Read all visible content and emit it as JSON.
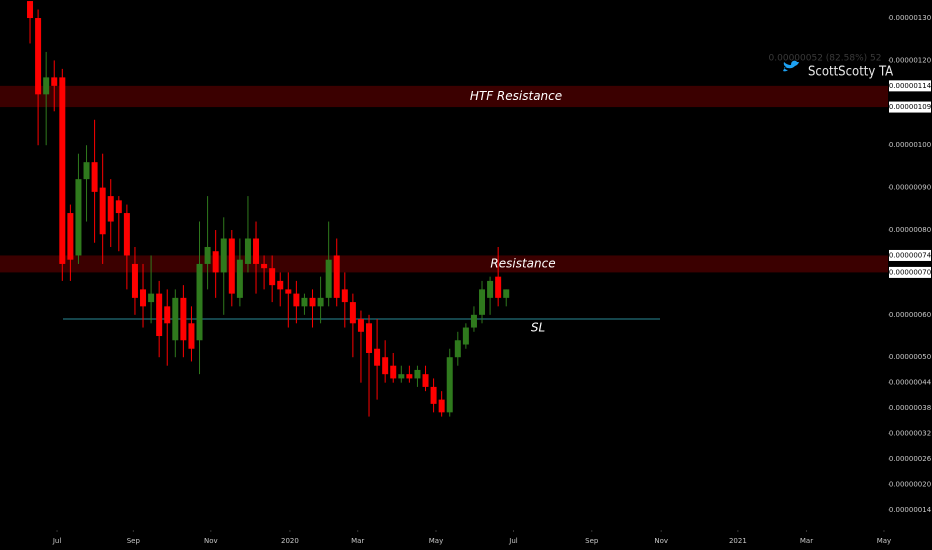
{
  "chart_data": {
    "type": "candlestick",
    "change_text": "0.00000052 (82.58%) 52",
    "watermark": "ScottScotty TA",
    "up_color": "#2f7a1d",
    "down_color": "#ff0000",
    "candles": {
      "open": [
        1.34e-06,
        1.3e-06,
        1.12e-06,
        1.16e-06,
        1.16e-06,
        8.4e-07,
        7.4e-07,
        9.2e-07,
        9.6e-07,
        9e-07,
        8.8e-07,
        8.7e-07,
        8.4e-07,
        7.2e-07,
        6.6e-07,
        6.3e-07,
        6.5e-07,
        6.2e-07,
        5.4e-07,
        6.4e-07,
        5.8e-07,
        5.4e-07,
        7.2e-07,
        7.5e-07,
        7e-07,
        7.8e-07,
        6.4e-07,
        7.2e-07,
        7.8e-07,
        7.2e-07,
        7.1e-07,
        6.8e-07,
        6.6e-07,
        6.5e-07,
        6.2e-07,
        6.4e-07,
        6.2e-07,
        6.4e-07,
        7.4e-07,
        6.6e-07,
        6.3e-07,
        5.9e-07,
        5.8e-07,
        5.2e-07,
        5e-07,
        4.8e-07,
        4.5e-07,
        4.6e-07,
        4.5e-07,
        4.6e-07,
        4.3e-07,
        4e-07,
        3.7e-07,
        5e-07,
        5.3e-07,
        5.7e-07,
        6e-07,
        6.4e-07,
        6.9e-07,
        6.4e-07
      ],
      "high": [
        1.34e-06,
        1.32e-06,
        1.22e-06,
        1.2e-06,
        1.18e-06,
        8.6e-07,
        9.8e-07,
        1e-06,
        1.06e-06,
        9.8e-07,
        9.2e-07,
        8.8e-07,
        8.6e-07,
        7.6e-07,
        7.2e-07,
        7.4e-07,
        6.8e-07,
        6.6e-07,
        6.6e-07,
        6.7e-07,
        6.2e-07,
        8.2e-07,
        8.8e-07,
        8e-07,
        8.3e-07,
        8e-07,
        7.8e-07,
        8.8e-07,
        8.2e-07,
        7.4e-07,
        7.4e-07,
        7e-07,
        7e-07,
        6.8e-07,
        6.5e-07,
        6.6e-07,
        6.9e-07,
        8.2e-07,
        7.8e-07,
        7e-07,
        6.5e-07,
        6.1e-07,
        6e-07,
        5.9e-07,
        5.4e-07,
        5.1e-07,
        4.8e-07,
        4.8e-07,
        4.8e-07,
        4.8e-07,
        4.5e-07,
        4.2e-07,
        5.2e-07,
        5.6e-07,
        5.8e-07,
        6.2e-07,
        6.8e-07,
        6.9e-07,
        7.6e-07,
        6.6e-07
      ],
      "low": [
        1.24e-06,
        1e-06,
        1e-06,
        1.08e-06,
        6.8e-07,
        6.8e-07,
        7.2e-07,
        8.2e-07,
        7.7e-07,
        7.2e-07,
        7.6e-07,
        7.5e-07,
        6.6e-07,
        6e-07,
        5.7e-07,
        5.8e-07,
        5e-07,
        4.8e-07,
        5e-07,
        5e-07,
        4.9e-07,
        4.6e-07,
        6.6e-07,
        6.4e-07,
        6e-07,
        6.2e-07,
        6.2e-07,
        7e-07,
        6.5e-07,
        6.6e-07,
        6.3e-07,
        6.2e-07,
        5.7e-07,
        5.8e-07,
        6e-07,
        5.7e-07,
        5.8e-07,
        6.2e-07,
        6.2e-07,
        5.7e-07,
        5e-07,
        4.4e-07,
        3.6e-07,
        4e-07,
        4.4e-07,
        4.4e-07,
        4.4e-07,
        4.4e-07,
        4.3e-07,
        4.2e-07,
        3.7e-07,
        3.6e-07,
        3.6e-07,
        4.8e-07,
        5.2e-07,
        5.6e-07,
        5.8e-07,
        6e-07,
        6.2e-07,
        6.2e-07
      ],
      "close": [
        1.3e-06,
        1.12e-06,
        1.16e-06,
        1.14e-06,
        7.2e-07,
        7.3e-07,
        9.2e-07,
        9.6e-07,
        8.9e-07,
        7.9e-07,
        8.2e-07,
        8.4e-07,
        7.4e-07,
        6.4e-07,
        6.2e-07,
        6.5e-07,
        5.5e-07,
        5.8e-07,
        6.4e-07,
        5.4e-07,
        5.2e-07,
        7.2e-07,
        7.6e-07,
        7e-07,
        7.8e-07,
        6.5e-07,
        7.3e-07,
        7.8e-07,
        7.2e-07,
        7.1e-07,
        6.7e-07,
        6.6e-07,
        6.5e-07,
        6.2e-07,
        6.4e-07,
        6.2e-07,
        6.4e-07,
        7.3e-07,
        6.4e-07,
        6.3e-07,
        5.8e-07,
        5.6e-07,
        5.1e-07,
        4.8e-07,
        4.6e-07,
        4.5e-07,
        4.6e-07,
        4.5e-07,
        4.7e-07,
        4.3e-07,
        3.9e-07,
        3.7e-07,
        5e-07,
        5.4e-07,
        5.7e-07,
        6e-07,
        6.6e-07,
        6.8e-07,
        6.4e-07,
        6.6e-07
      ]
    },
    "xlim": [
      -3.72,
      106.3
    ],
    "xticks": [
      {
        "value": 3.35,
        "label": "Jul"
      },
      {
        "value": 12.8,
        "label": "Sep"
      },
      {
        "value": 22.4,
        "label": "Nov"
      },
      {
        "value": 32.2,
        "label": "2020"
      },
      {
        "value": 40.6,
        "label": "Mar"
      },
      {
        "value": 50.3,
        "label": "May"
      },
      {
        "value": 59.9,
        "label": "Jul"
      },
      {
        "value": 69.6,
        "label": "Sep"
      },
      {
        "value": 78.2,
        "label": "Nov"
      },
      {
        "value": 87.7,
        "label": "2021"
      },
      {
        "value": 96.2,
        "label": "Mar"
      },
      {
        "value": 105.8,
        "label": "May"
      }
    ],
    "ylim": [
      9.25e-08,
      1.3425e-06
    ],
    "yticks": [
      {
        "value": 1.3e-06,
        "label": "0.00000130"
      },
      {
        "value": 1.2e-06,
        "label": "0.00000120"
      },
      {
        "value": 1e-06,
        "label": "0.00000100"
      },
      {
        "value": 9e-07,
        "label": "0.00000090"
      },
      {
        "value": 8e-07,
        "label": "0.00000080"
      },
      {
        "value": 6e-07,
        "label": "0.00000060"
      },
      {
        "value": 5e-07,
        "label": "0.00000050"
      },
      {
        "value": 4.4e-07,
        "label": "0.00000044"
      },
      {
        "value": 3.8e-07,
        "label": "0.00000038"
      },
      {
        "value": 3.2e-07,
        "label": "0.00000032"
      },
      {
        "value": 2.6e-07,
        "label": "0.00000026"
      },
      {
        "value": 2e-07,
        "label": "0.00000020"
      },
      {
        "value": 1.4e-07,
        "label": "0.00000014"
      }
    ],
    "zones": [
      {
        "label": "HTF Resistance",
        "range": [
          {
            "value": 1.14e-06,
            "label": "0.00000114"
          },
          {
            "value": 1.09e-06,
            "label": "0.00000109"
          }
        ]
      },
      {
        "label": "Resistance",
        "range": [
          {
            "value": 7.4e-07,
            "label": "0.00000074"
          },
          {
            "value": 7e-07,
            "label": "0.00000070"
          }
        ]
      }
    ],
    "sl": {
      "label": "SL",
      "value": 5.9e-07
    }
  }
}
